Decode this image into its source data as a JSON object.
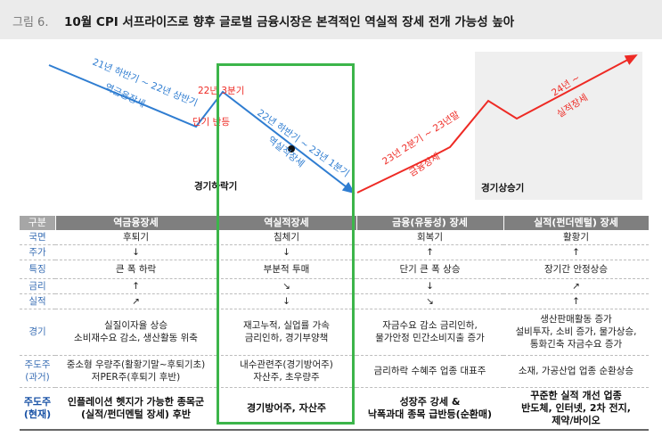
{
  "header": {
    "figure_no": "그림 6.",
    "title": "10월 CPI 서프라이즈로 향후 글로벌 금융시장은 본격적인 역실적 장세 전개 가능성 높아"
  },
  "diagram": {
    "colors": {
      "blue": "#2f7dd1",
      "red": "#ee2a24",
      "green": "#3cb54a",
      "shade": "#efefef"
    },
    "seg1_period": "21년 하반기 ~ 22년 상반기",
    "seg1_phase": "역금융장세",
    "mid_period": "22년 3분기",
    "mid_phase": "단기 반등",
    "seg2_period": "22년 하반기 ~ 23년 1분기",
    "seg2_phase": "역실적장세",
    "seg3_period": "23년 2분기 ~ 23년말",
    "seg3_phase": "금융장세",
    "seg4_period": "24년 ~",
    "seg4_phase": "실적장세",
    "label_recession": "경기하락기",
    "label_expansion": "경기상승기"
  },
  "table": {
    "headers": [
      "구분",
      "역금융장세",
      "역실적장세",
      "금융(유동성) 장세",
      "실적(펀더멘털) 장세"
    ],
    "rows": [
      {
        "label": "국면",
        "cells": [
          "후퇴기",
          "침체기",
          "회복기",
          "활황기"
        ]
      },
      {
        "label": "주가",
        "cells": [
          "↓",
          "↓",
          "↑",
          "↑"
        ]
      },
      {
        "label": "특징",
        "cells": [
          "큰 폭 하락",
          "부분적 투매",
          "단기 큰 폭 상승",
          "장기간 안정상승"
        ]
      },
      {
        "label": "금리",
        "cells": [
          "↑",
          "↘",
          "↓",
          "↗"
        ]
      },
      {
        "label": "실적",
        "cells": [
          "↗",
          "↓",
          "↘",
          "↑"
        ]
      },
      {
        "label": "경기",
        "cells": [
          "실질이자율 상승\n소비재수요 감소, 생산활동 위축",
          "재고누적, 실업률 가속\n금리인하, 경기부양책",
          "자금수요 감소 금리인하,\n물가안정 민간소비지출 증가",
          "생산판매활동 증가\n설비투자, 소비 증가, 물가상승,\n통화긴축 자금수요 증가"
        ]
      },
      {
        "label": "주도주\n(과거)",
        "cells": [
          "중소형 우량주(활황기말~후퇴기초)\n저PER주(후퇴기 후반)",
          "내수관련주(경기방어주)\n자산주, 초우량주",
          "금리하락 수혜주 업종 대표주",
          "소재, 가공산업 업종 순환상승"
        ]
      },
      {
        "label": "주도주\n(현재)",
        "cells": [
          "인플레이션 헷지가 가능한 종목군\n(실적/펀더멘털 장세) 후반",
          "경기방어주, 자산주",
          "성장주 강세 &\n낙폭과대 종목 급반등(순환매)",
          "꾸준한 실적 개선 업종\n반도체, 인터넷, 2차 전지,\n제약/바이오"
        ]
      }
    ]
  }
}
